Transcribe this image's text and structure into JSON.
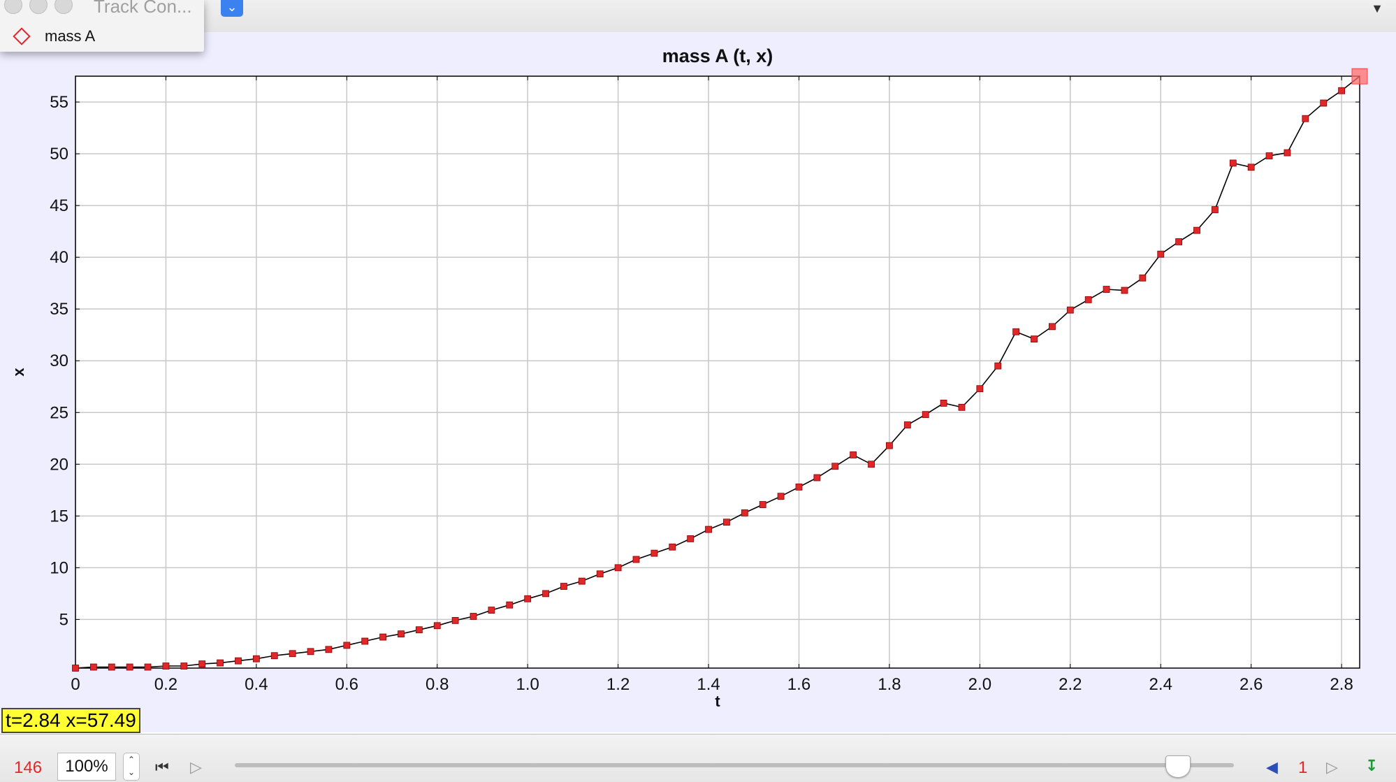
{
  "window": {
    "popup_title": "Track Con...",
    "track_name": "mass A",
    "dropdown_icon": "chevron-down-icon"
  },
  "readout": "t=2.84  x=57.49",
  "toolbar": {
    "frame_number": "146",
    "zoom": "100%",
    "step_size": "1"
  },
  "colors": {
    "plot_background": "#eeeeff",
    "marker": "#e0282b",
    "line": "#000000",
    "readout_bg": "#ffff33"
  },
  "chart_data": {
    "type": "line",
    "title": "mass A (t, x)",
    "xlabel": "t",
    "ylabel": "x",
    "xlim": [
      0,
      2.84
    ],
    "ylim": [
      0.3,
      57.5
    ],
    "grid": true,
    "xticks": [
      0,
      0.2,
      0.4,
      0.6,
      0.8,
      1.0,
      1.2,
      1.4,
      1.6,
      1.8,
      2.0,
      2.2,
      2.4,
      2.6,
      2.8
    ],
    "xtick_labels": [
      "0",
      "0.2",
      "0.4",
      "0.6",
      "0.8",
      "1.0",
      "1.2",
      "1.4",
      "1.6",
      "1.8",
      "2.0",
      "2.2",
      "2.4",
      "2.6",
      "2.8"
    ],
    "yticks": [
      5,
      10,
      15,
      20,
      25,
      30,
      35,
      40,
      45,
      50,
      55
    ],
    "ytick_labels": [
      "5",
      "10",
      "15",
      "20",
      "25",
      "30",
      "35",
      "40",
      "45",
      "50",
      "55"
    ],
    "series": [
      {
        "x": [
          0,
          0.04,
          0.08,
          0.12,
          0.16,
          0.2,
          0.24,
          0.28,
          0.32,
          0.36,
          0.4,
          0.44,
          0.48,
          0.52,
          0.56,
          0.6,
          0.64,
          0.68,
          0.72,
          0.76,
          0.8,
          0.84,
          0.88,
          0.92,
          0.96,
          1.0,
          1.04,
          1.08,
          1.12,
          1.16,
          1.2,
          1.24,
          1.28,
          1.32,
          1.36,
          1.4,
          1.44,
          1.48,
          1.52,
          1.56,
          1.6,
          1.64,
          1.68,
          1.72,
          1.76,
          1.8,
          1.84,
          1.88,
          1.92,
          1.96,
          2.0,
          2.04,
          2.08,
          2.12,
          2.16,
          2.2,
          2.24,
          2.28,
          2.32,
          2.36,
          2.4,
          2.44,
          2.48,
          2.52,
          2.56,
          2.6,
          2.64,
          2.68,
          2.72,
          2.76,
          2.8,
          2.84
        ],
        "y": [
          0.3,
          0.4,
          0.4,
          0.4,
          0.4,
          0.5,
          0.5,
          0.7,
          0.8,
          1.0,
          1.2,
          1.5,
          1.7,
          1.9,
          2.1,
          2.5,
          2.9,
          3.3,
          3.6,
          4.0,
          4.4,
          4.9,
          5.3,
          5.9,
          6.4,
          7.0,
          7.5,
          8.2,
          8.7,
          9.4,
          10.0,
          10.8,
          11.4,
          12.0,
          12.8,
          13.7,
          14.4,
          15.3,
          16.1,
          16.9,
          17.8,
          18.7,
          19.8,
          20.9,
          20.0,
          21.8,
          23.8,
          24.8,
          25.9,
          25.5,
          27.3,
          29.5,
          32.8,
          32.1,
          33.3,
          34.9,
          35.9,
          36.9,
          36.8,
          38.0,
          40.3,
          41.5,
          42.6,
          44.6,
          49.1,
          48.7,
          49.8,
          50.1,
          53.4,
          54.9,
          56.1,
          57.49
        ]
      }
    ]
  }
}
